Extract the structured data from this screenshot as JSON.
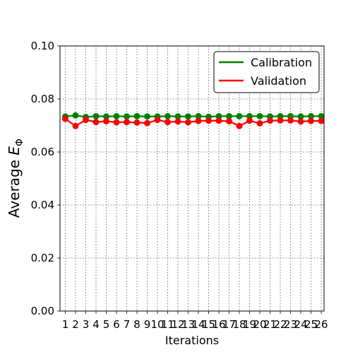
{
  "chart_data": {
    "type": "line",
    "xlabel": "Iterations",
    "ylabel": "Average",
    "ylabel_subscript_var": "E",
    "ylabel_subscript": "Φ",
    "ylim": [
      0.0,
      0.1
    ],
    "yticks": [
      "0.00",
      "0.02",
      "0.04",
      "0.06",
      "0.08",
      "0.10"
    ],
    "ytick_values": [
      0.0,
      0.02,
      0.04,
      0.06,
      0.08,
      0.1
    ],
    "x": [
      1,
      2,
      3,
      4,
      5,
      6,
      7,
      8,
      9,
      10,
      11,
      12,
      13,
      14,
      15,
      16,
      17,
      18,
      19,
      20,
      21,
      22,
      23,
      24,
      25,
      26
    ],
    "grid": "dotted",
    "legend_position": "top-right",
    "series": [
      {
        "name": "Calibration",
        "color": "#008000",
        "values": [
          0.0734,
          0.0738,
          0.0732,
          0.0735,
          0.0734,
          0.0735,
          0.0734,
          0.0735,
          0.0734,
          0.0734,
          0.0735,
          0.0734,
          0.0734,
          0.0735,
          0.0733,
          0.0735,
          0.0735,
          0.0735,
          0.0735,
          0.0735,
          0.0734,
          0.0735,
          0.0735,
          0.0734,
          0.0735,
          0.0735
        ]
      },
      {
        "name": "Validation",
        "color": "#ff0000",
        "values": [
          0.0725,
          0.0698,
          0.0721,
          0.0713,
          0.0716,
          0.0712,
          0.0713,
          0.0711,
          0.0709,
          0.0721,
          0.0713,
          0.0715,
          0.0712,
          0.0717,
          0.0718,
          0.0718,
          0.0716,
          0.0698,
          0.0718,
          0.0708,
          0.0718,
          0.0719,
          0.0719,
          0.0715,
          0.0717,
          0.0717
        ]
      }
    ]
  }
}
